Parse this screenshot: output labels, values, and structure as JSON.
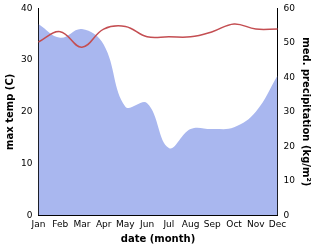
{
  "chart_data": {
    "type": "line",
    "categories": [
      "Jan",
      "Feb",
      "Mar",
      "Apr",
      "May",
      "Jun",
      "Jul",
      "Aug",
      "Sep",
      "Oct",
      "Nov",
      "Dec"
    ],
    "x_label": "date (month)",
    "y_label": "max temp (C)",
    "y2_label": "med. precipitation (kg/m²)",
    "ylim": [
      0,
      40
    ],
    "yticks": [
      0,
      10,
      20,
      30,
      40
    ],
    "y2lim": [
      0,
      60
    ],
    "y2ticks": [
      0,
      10,
      20,
      30,
      40,
      50,
      60
    ],
    "grid": false,
    "series": [
      {
        "name": "max temp",
        "type": "line",
        "color": "#c44e52",
        "values": [
          33.5,
          35.5,
          32.5,
          36,
          36.5,
          34.5,
          34.5,
          34.5,
          35.5,
          37,
          36,
          36
        ]
      },
      {
        "name": "med. precipitation",
        "type": "area",
        "axis": "y2",
        "color": "#a9b7ef",
        "values": [
          55.5,
          51.5,
          54,
          49.5,
          31.5,
          32.5,
          19.5,
          25,
          25,
          25.5,
          30,
          40.5
        ]
      }
    ]
  }
}
